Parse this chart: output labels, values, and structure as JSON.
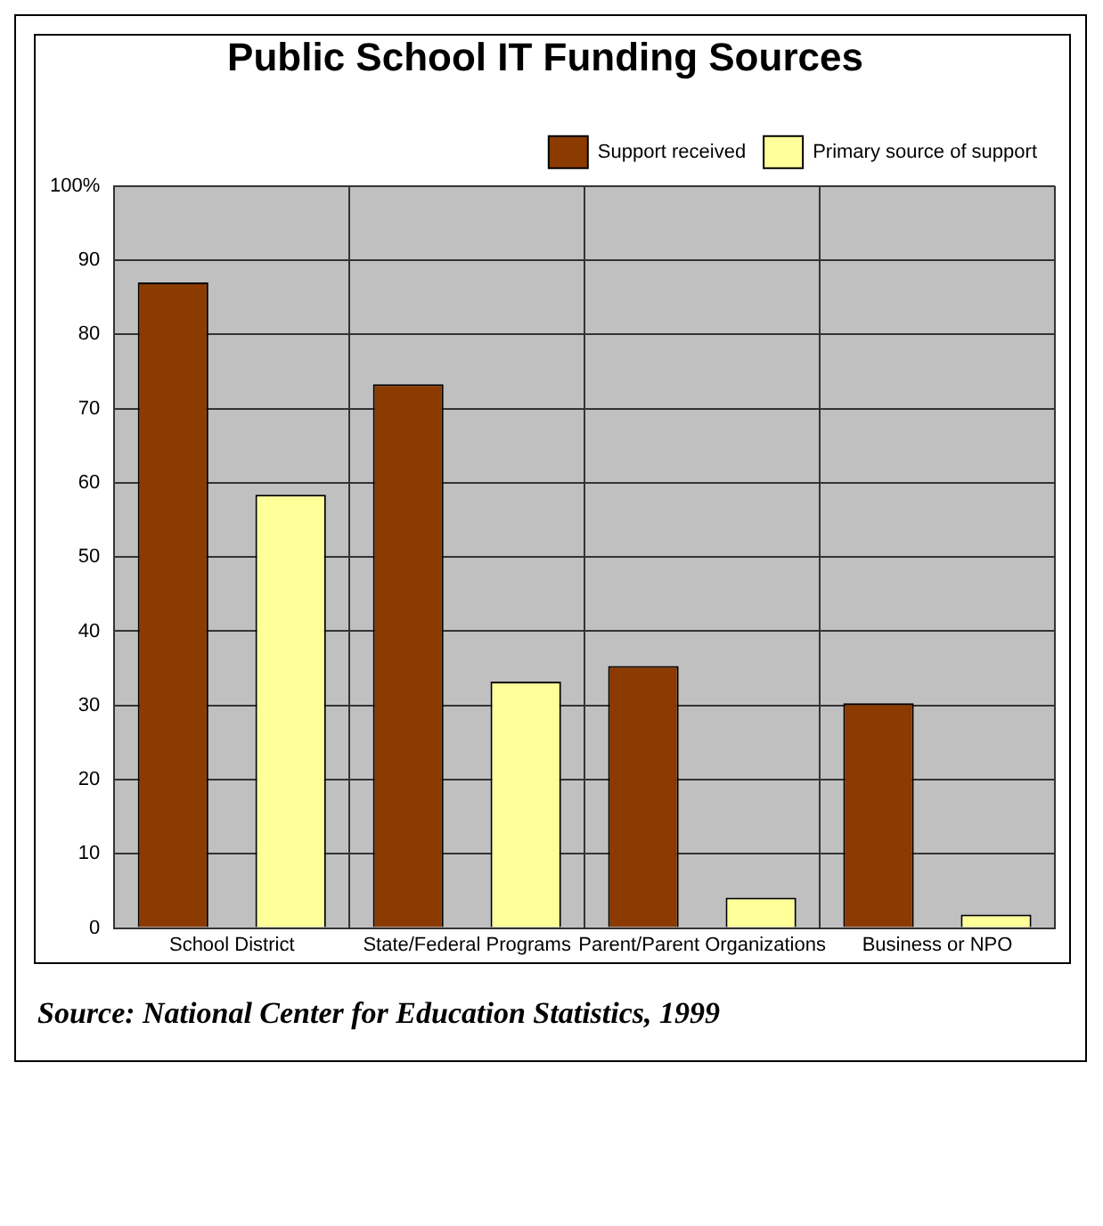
{
  "chart_data": {
    "type": "bar",
    "title": "Public School IT Funding Sources",
    "categories": [
      "School District",
      "State/Federal Programs",
      "Parent/Parent Organizations",
      "Business or NPO"
    ],
    "series": [
      {
        "name": "Support received",
        "color": "#8b3a00",
        "values": [
          87,
          73.3,
          35.3,
          30.3
        ]
      },
      {
        "name": "Primary source of support",
        "color": "#ffff99",
        "values": [
          58.4,
          33.2,
          4.1,
          1.8
        ]
      }
    ],
    "ylim": [
      0,
      100
    ],
    "yticks": [
      0,
      10,
      20,
      30,
      40,
      50,
      60,
      70,
      80,
      90,
      {
        "value": 100,
        "label": "100%"
      }
    ],
    "grid": true,
    "legend": "top right",
    "annotations": [
      "Source:  National Center for Education Statistics, 1999"
    ]
  }
}
